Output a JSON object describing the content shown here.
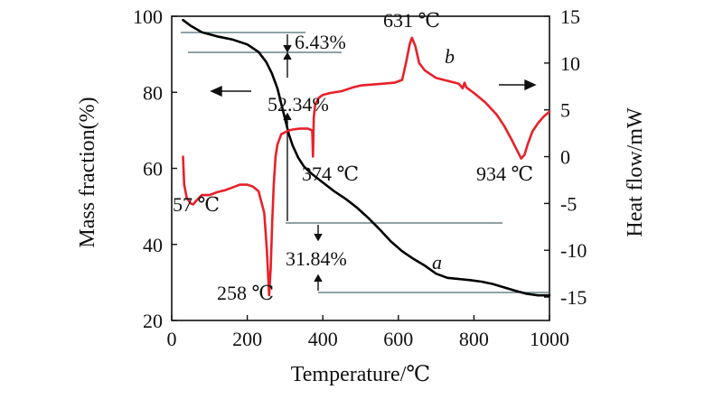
{
  "chart_data": {
    "type": "line",
    "xlabel": "Temperature/℃",
    "ylabel_left": "Mass fraction(%)",
    "ylabel_right": "Heat flow/mW",
    "xlim": [
      0,
      1000
    ],
    "ylim_left": [
      20,
      100
    ],
    "ylim_right": [
      -17.5,
      15
    ],
    "x_ticks": [
      "0",
      "200",
      "400",
      "600",
      "800",
      "1000"
    ],
    "y_left_ticks": [
      "20",
      "40",
      "60",
      "80",
      "100"
    ],
    "y_right_ticks": [
      "-15",
      "-10",
      "-5",
      "0",
      "5",
      "10",
      "15"
    ],
    "grid": false,
    "series": [
      {
        "name": "a",
        "axis": "left",
        "color": "#000000",
        "x": [
          30,
          50,
          80,
          120,
          160,
          200,
          230,
          250,
          265,
          280,
          290,
          300,
          310,
          320,
          335,
          350,
          370,
          400,
          430,
          460,
          490,
          520,
          550,
          580,
          610,
          640,
          670,
          700,
          730,
          760,
          790,
          820,
          850,
          880,
          910,
          940,
          970,
          1000
        ],
        "values": [
          99,
          97.5,
          95.8,
          94.7,
          93.9,
          92.6,
          90.6,
          88,
          85,
          81,
          77,
          73,
          69,
          66,
          62.8,
          60.5,
          58.6,
          56.3,
          54,
          52,
          49.7,
          47,
          44,
          40.8,
          38.2,
          36.2,
          34.4,
          32.3,
          31.2,
          30.9,
          30.6,
          30.2,
          29.6,
          28.7,
          27.8,
          27,
          26.6,
          26.6
        ]
      },
      {
        "name": "b",
        "axis": "right",
        "color": "#e8202a",
        "x": [
          30,
          33,
          40,
          50,
          57,
          65,
          80,
          100,
          120,
          140,
          160,
          180,
          200,
          215,
          230,
          245,
          252,
          258,
          262,
          266,
          270,
          275,
          280,
          290,
          300,
          310,
          320,
          340,
          360,
          372,
          374,
          376,
          380,
          390,
          400,
          420,
          450,
          480,
          500,
          530,
          560,
          590,
          610,
          620,
          630,
          636,
          645,
          655,
          670,
          700,
          730,
          760,
          770,
          775,
          780,
          800,
          830,
          860,
          880,
          900,
          915,
          925,
          934,
          942,
          955,
          970,
          985,
          1000
        ],
        "values": [
          0,
          -3,
          -4.4,
          -5,
          -5.1,
          -4.7,
          -4.1,
          -4.1,
          -3.8,
          -3.6,
          -3.3,
          -3,
          -3,
          -3.2,
          -3.7,
          -6,
          -10,
          -14.8,
          -12,
          -7,
          -3,
          0,
          1.3,
          2.4,
          2.6,
          2.8,
          2.9,
          3,
          3,
          2.8,
          0,
          4.2,
          5.6,
          6.3,
          6.6,
          6.8,
          7,
          7.4,
          7.6,
          7.7,
          7.8,
          7.9,
          8.2,
          10,
          12,
          12.7,
          11.8,
          10,
          9.2,
          8.4,
          8.1,
          7.8,
          7.3,
          7.9,
          7.4,
          6.8,
          5.8,
          4.5,
          3.3,
          1.8,
          0.6,
          -0.2,
          0.2,
          1.3,
          2.7,
          3.6,
          4.3,
          4.8
        ]
      }
    ],
    "annotations": [
      "6.43%",
      "52.34%",
      "31.84%",
      "631 ℃",
      "374 ℃",
      "934 ℃",
      "57 ℃",
      "258 ℃"
    ]
  }
}
